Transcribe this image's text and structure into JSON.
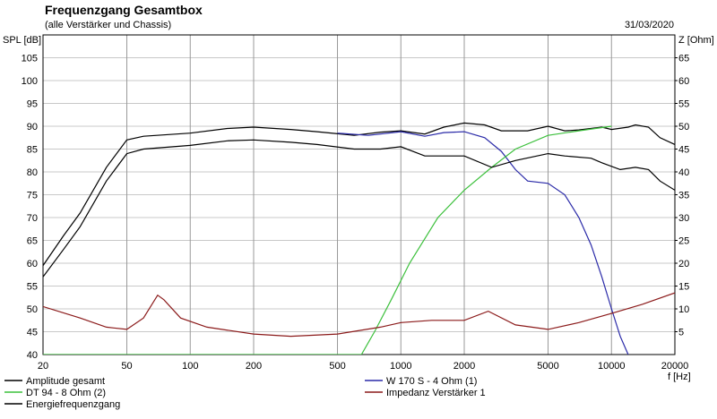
{
  "chart_data": {
    "type": "line",
    "title": "Frequenzgang Gesamtbox",
    "subtitle": "(alle Verstärker und Chassis)",
    "date": "31/03/2020",
    "y_label": "SPL [dB]",
    "y2_label": "Z [Ohm]",
    "x_label": "f [Hz]",
    "log_x": true,
    "grid": true,
    "xlim": [
      20,
      20000
    ],
    "xticks": [
      20,
      50,
      100,
      200,
      500,
      1000,
      2000,
      5000,
      10000,
      20000
    ],
    "ylim": [
      40,
      110
    ],
    "yticks": [
      40,
      45,
      50,
      55,
      60,
      65,
      70,
      75,
      80,
      85,
      90,
      95,
      100,
      105
    ],
    "y2lim": [
      0,
      70
    ],
    "y2ticks": [
      5,
      10,
      15,
      20,
      25,
      30,
      35,
      40,
      45,
      50,
      55,
      60,
      65
    ],
    "series": [
      {
        "name": "Amplitude gesamt",
        "color": "#000000",
        "x": [
          20,
          25,
          30,
          40,
          50,
          60,
          100,
          150,
          200,
          300,
          400,
          600,
          800,
          1000,
          1300,
          1600,
          2000,
          2500,
          3000,
          4000,
          5000,
          6000,
          7000,
          9000,
          10000,
          12000,
          13000,
          15000,
          17000,
          20000
        ],
        "values": [
          59.5,
          66,
          71,
          81,
          87,
          87.8,
          88.5,
          89.5,
          89.8,
          89.3,
          88.8,
          88,
          88.7,
          89,
          88.3,
          89.8,
          90.7,
          90.3,
          89,
          89,
          90,
          89,
          89.2,
          89.8,
          89.3,
          89.8,
          90.3,
          89.8,
          87.5,
          86
        ]
      },
      {
        "name": "W 170 S - 4 Ohm (1)",
        "color": "#2a2aa8",
        "x": [
          500,
          700,
          1000,
          1300,
          1600,
          2000,
          2500,
          3000,
          3500,
          4000,
          5000,
          6000,
          7000,
          8000,
          9000,
          10000,
          11000,
          12000
        ],
        "values": [
          88.5,
          88,
          88.8,
          87.8,
          88.6,
          88.8,
          87.5,
          84.5,
          80.5,
          78,
          77.5,
          75,
          70,
          64,
          57,
          50,
          44,
          40
        ]
      },
      {
        "name": "DT 94 - 8 Ohm (2)",
        "color": "#3cc03c",
        "x": [
          20,
          100,
          500,
          650,
          750,
          900,
          1100,
          1500,
          2000,
          2700,
          3500,
          5000,
          7000,
          10000
        ],
        "values": [
          40,
          40,
          40,
          40,
          45,
          52,
          60,
          70,
          76,
          81,
          85,
          88,
          89,
          90
        ]
      },
      {
        "name": "Impedanz Verstärker 1",
        "color": "#8b1a1a",
        "axis": "y2",
        "x": [
          20,
          30,
          40,
          50,
          60,
          70,
          75,
          90,
          120,
          200,
          300,
          500,
          800,
          1000,
          1400,
          2000,
          2600,
          3500,
          5000,
          7000,
          10000,
          14000,
          20000
        ],
        "values": [
          10.5,
          8,
          6,
          5.5,
          8,
          13,
          12,
          8,
          6,
          4.5,
          4,
          4.5,
          6,
          7,
          7.5,
          7.5,
          9.5,
          6.5,
          5.5,
          7,
          9,
          11,
          13.5
        ]
      },
      {
        "name": "Energiefrequenzgang",
        "color": "#000000",
        "x": [
          20,
          25,
          30,
          40,
          50,
          60,
          100,
          150,
          200,
          300,
          400,
          600,
          800,
          1000,
          1300,
          1600,
          2000,
          2700,
          3500,
          5000,
          6000,
          8000,
          9000,
          11000,
          13000,
          15000,
          17000,
          20000
        ],
        "values": [
          57,
          63,
          68,
          78,
          84,
          85,
          85.8,
          86.8,
          87,
          86.5,
          86,
          85,
          85,
          85.5,
          83.5,
          83.5,
          83.5,
          81,
          82.5,
          84,
          83.5,
          83,
          82,
          80.5,
          81,
          80.5,
          78,
          76
        ]
      }
    ]
  }
}
